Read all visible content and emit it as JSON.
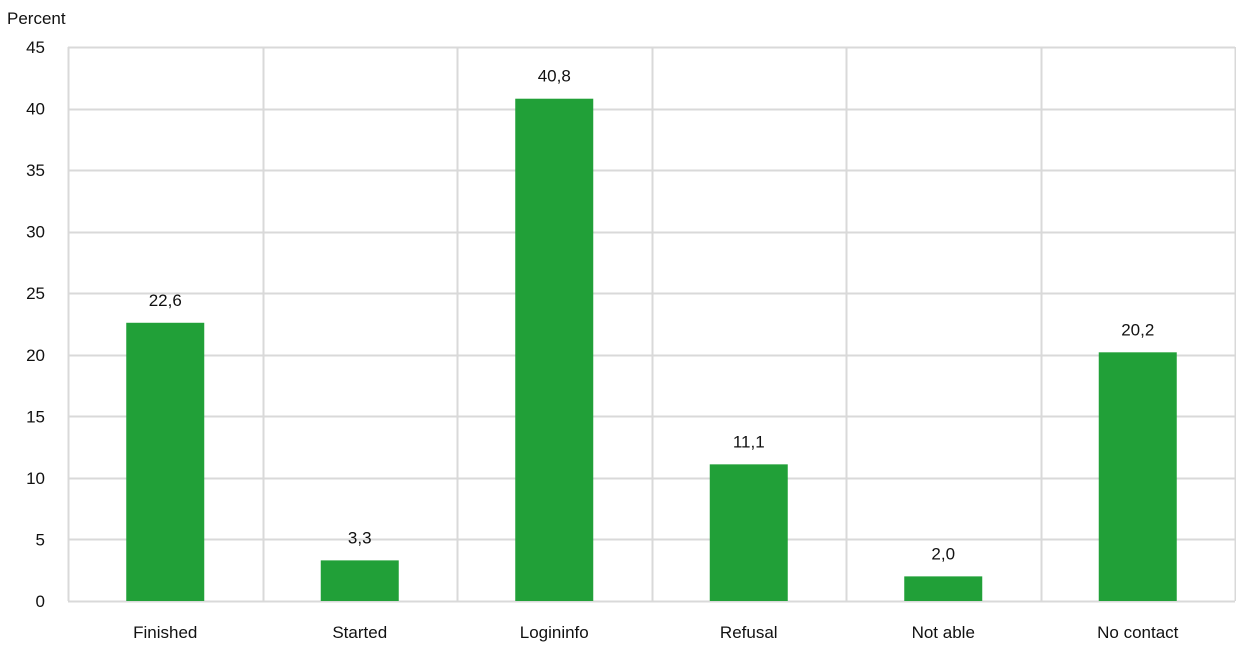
{
  "chart_data": {
    "type": "bar",
    "ylabel": "Percent",
    "xlabel": "",
    "categories": [
      "Finished",
      "Started",
      "Logininfo",
      "Refusal",
      "Not able",
      "No contact"
    ],
    "values": [
      22.6,
      3.3,
      40.8,
      11.1,
      2.0,
      20.2
    ],
    "value_labels": [
      "22,6",
      "3,3",
      "40,8",
      "11,1",
      "2,0",
      "20,2"
    ],
    "ylim": [
      0,
      45
    ],
    "yticks": [
      0,
      5,
      10,
      15,
      20,
      25,
      30,
      35,
      40,
      45
    ],
    "grid": true,
    "bar_color": "#21a038",
    "grid_color": "#d9d9d9"
  }
}
